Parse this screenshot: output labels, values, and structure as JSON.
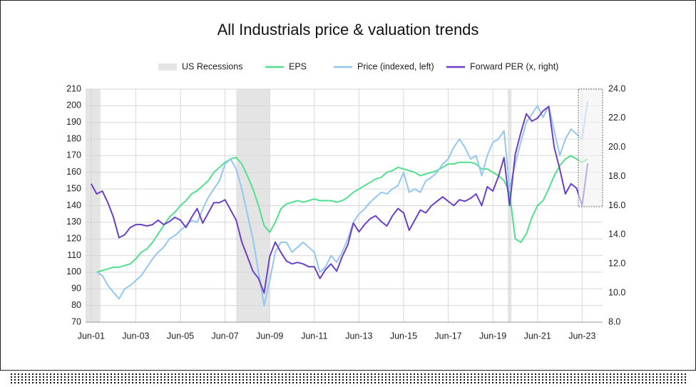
{
  "chart_data": {
    "type": "line",
    "title": "All Industrials price & valuation trends",
    "x": [
      "2001-06",
      "2001-09",
      "2001-12",
      "2002-03",
      "2002-06",
      "2002-09",
      "2002-12",
      "2003-03",
      "2003-06",
      "2003-09",
      "2003-12",
      "2004-03",
      "2004-06",
      "2004-09",
      "2004-12",
      "2005-03",
      "2005-06",
      "2005-09",
      "2005-12",
      "2006-03",
      "2006-06",
      "2006-09",
      "2006-12",
      "2007-03",
      "2007-06",
      "2007-09",
      "2007-12",
      "2008-03",
      "2008-06",
      "2008-09",
      "2008-12",
      "2009-03",
      "2009-06",
      "2009-09",
      "2009-12",
      "2010-03",
      "2010-06",
      "2010-09",
      "2010-12",
      "2011-03",
      "2011-06",
      "2011-09",
      "2011-12",
      "2012-03",
      "2012-06",
      "2012-09",
      "2012-12",
      "2013-03",
      "2013-06",
      "2013-09",
      "2013-12",
      "2014-03",
      "2014-06",
      "2014-09",
      "2014-12",
      "2015-03",
      "2015-06",
      "2015-09",
      "2015-12",
      "2016-03",
      "2016-06",
      "2016-09",
      "2016-12",
      "2017-03",
      "2017-06",
      "2017-09",
      "2017-12",
      "2018-03",
      "2018-06",
      "2018-09",
      "2018-12",
      "2019-03",
      "2019-06",
      "2019-09",
      "2019-12",
      "2020-03",
      "2020-06",
      "2020-09",
      "2020-12",
      "2021-03",
      "2021-06",
      "2021-09",
      "2021-12",
      "2022-03",
      "2022-06",
      "2022-09",
      "2022-12",
      "2023-03",
      "2023-06",
      "2023-09"
    ],
    "recessions": {
      "name": "US Recessions",
      "color": "#e4e4e4",
      "periods": [
        [
          "2001-03",
          "2001-11"
        ],
        [
          "2007-12",
          "2009-06"
        ],
        [
          "2020-02",
          "2020-04"
        ]
      ]
    },
    "series": [
      {
        "name": "EPS",
        "color": "#4fe08c",
        "axis": "y",
        "values": [
          null,
          100,
          101,
          102,
          103,
          103,
          104,
          105,
          108,
          112,
          114,
          118,
          123,
          128,
          133,
          136,
          140,
          143,
          147,
          149,
          152,
          155,
          160,
          163,
          166,
          168,
          169,
          165,
          158,
          150,
          140,
          128,
          124,
          130,
          138,
          141,
          142,
          143,
          142,
          143,
          144,
          143,
          143,
          143,
          142,
          143,
          145,
          148,
          150,
          152,
          154,
          156,
          157,
          160,
          161,
          163,
          162,
          161,
          160,
          158,
          159,
          160,
          161,
          163,
          165,
          165,
          166,
          166,
          166,
          165,
          162,
          162,
          160,
          158,
          155,
          148,
          120,
          118,
          123,
          133,
          140,
          143,
          150,
          158,
          164,
          168,
          170,
          168,
          166,
          168
        ]
      },
      {
        "name": "Price (indexed, left)",
        "color": "#92c7f3",
        "axis": "y",
        "values": [
          null,
          100,
          98,
          92,
          88,
          84,
          90,
          92,
          95,
          98,
          103,
          108,
          112,
          115,
          120,
          122,
          125,
          128,
          131,
          130,
          138,
          145,
          150,
          155,
          165,
          168,
          162,
          150,
          135,
          120,
          100,
          80,
          95,
          112,
          118,
          118,
          112,
          115,
          118,
          115,
          112,
          100,
          103,
          110,
          106,
          112,
          120,
          130,
          135,
          138,
          142,
          145,
          148,
          147,
          150,
          152,
          160,
          148,
          150,
          148,
          155,
          157,
          160,
          165,
          168,
          175,
          180,
          175,
          168,
          170,
          158,
          170,
          178,
          180,
          185,
          150,
          165,
          178,
          190,
          195,
          200,
          193,
          200,
          185,
          170,
          180,
          186,
          183,
          180,
          203
        ]
      },
      {
        "name": "Forward PER (x, right)",
        "color": "#6a3fc7",
        "axis": "y2",
        "values": [
          17.5,
          16.8,
          17.0,
          16.2,
          15.2,
          13.8,
          14.0,
          14.5,
          14.7,
          14.7,
          14.6,
          14.7,
          15.0,
          14.7,
          14.9,
          15.2,
          15.0,
          14.5,
          15.2,
          15.8,
          14.8,
          15.5,
          16.2,
          16.2,
          16.4,
          15.7,
          15.0,
          13.5,
          12.5,
          11.5,
          11.0,
          10.0,
          12.5,
          13.5,
          12.8,
          12.2,
          12.0,
          12.1,
          12.0,
          11.8,
          11.8,
          11.0,
          11.6,
          12.0,
          11.5,
          12.5,
          13.3,
          14.8,
          14.2,
          14.7,
          15.1,
          15.3,
          14.9,
          14.6,
          15.3,
          15.8,
          15.5,
          14.3,
          15.0,
          15.7,
          15.5,
          16.0,
          16.3,
          16.6,
          16.3,
          16.0,
          16.4,
          16.3,
          16.5,
          16.8,
          16.0,
          17.3,
          17.0,
          18.0,
          19.3,
          16.0,
          19.5,
          21.0,
          22.3,
          21.8,
          22.0,
          22.5,
          22.8,
          20.0,
          18.5,
          16.8,
          17.5,
          17.2,
          16.0,
          18.9
        ]
      }
    ],
    "xlim": [
      "2001-03",
      "2024-05"
    ],
    "xticks": [
      {
        "value": "2001-06",
        "label": "Jun-01"
      },
      {
        "value": "2003-06",
        "label": "Jun-03"
      },
      {
        "value": "2005-06",
        "label": "Jun-05"
      },
      {
        "value": "2007-06",
        "label": "Jun-07"
      },
      {
        "value": "2009-06",
        "label": "Jun-09"
      },
      {
        "value": "2011-06",
        "label": "Jun-11"
      },
      {
        "value": "2013-06",
        "label": "Jun-13"
      },
      {
        "value": "2015-06",
        "label": "Jun-15"
      },
      {
        "value": "2017-06",
        "label": "Jun-17"
      },
      {
        "value": "2019-06",
        "label": "Jun-19"
      },
      {
        "value": "2021-06",
        "label": "Jun-21"
      },
      {
        "value": "2023-06",
        "label": "Jun-23"
      }
    ],
    "ylim": [
      70,
      210
    ],
    "yticks": [
      70,
      80,
      90,
      100,
      110,
      120,
      130,
      140,
      150,
      160,
      170,
      180,
      190,
      200,
      210
    ],
    "y2lim": [
      8,
      24
    ],
    "y2ticks": [
      {
        "value": 8,
        "label": "8.0"
      },
      {
        "value": 10,
        "label": "10.0"
      },
      {
        "value": 12,
        "label": "12.0"
      },
      {
        "value": 14,
        "label": "14.0"
      },
      {
        "value": 16,
        "label": "16.0"
      },
      {
        "value": 18,
        "label": "18.0"
      },
      {
        "value": 20,
        "label": "20.0"
      },
      {
        "value": 22,
        "label": "22.0"
      },
      {
        "value": 24,
        "label": "24.0"
      }
    ],
    "grid": true
  }
}
